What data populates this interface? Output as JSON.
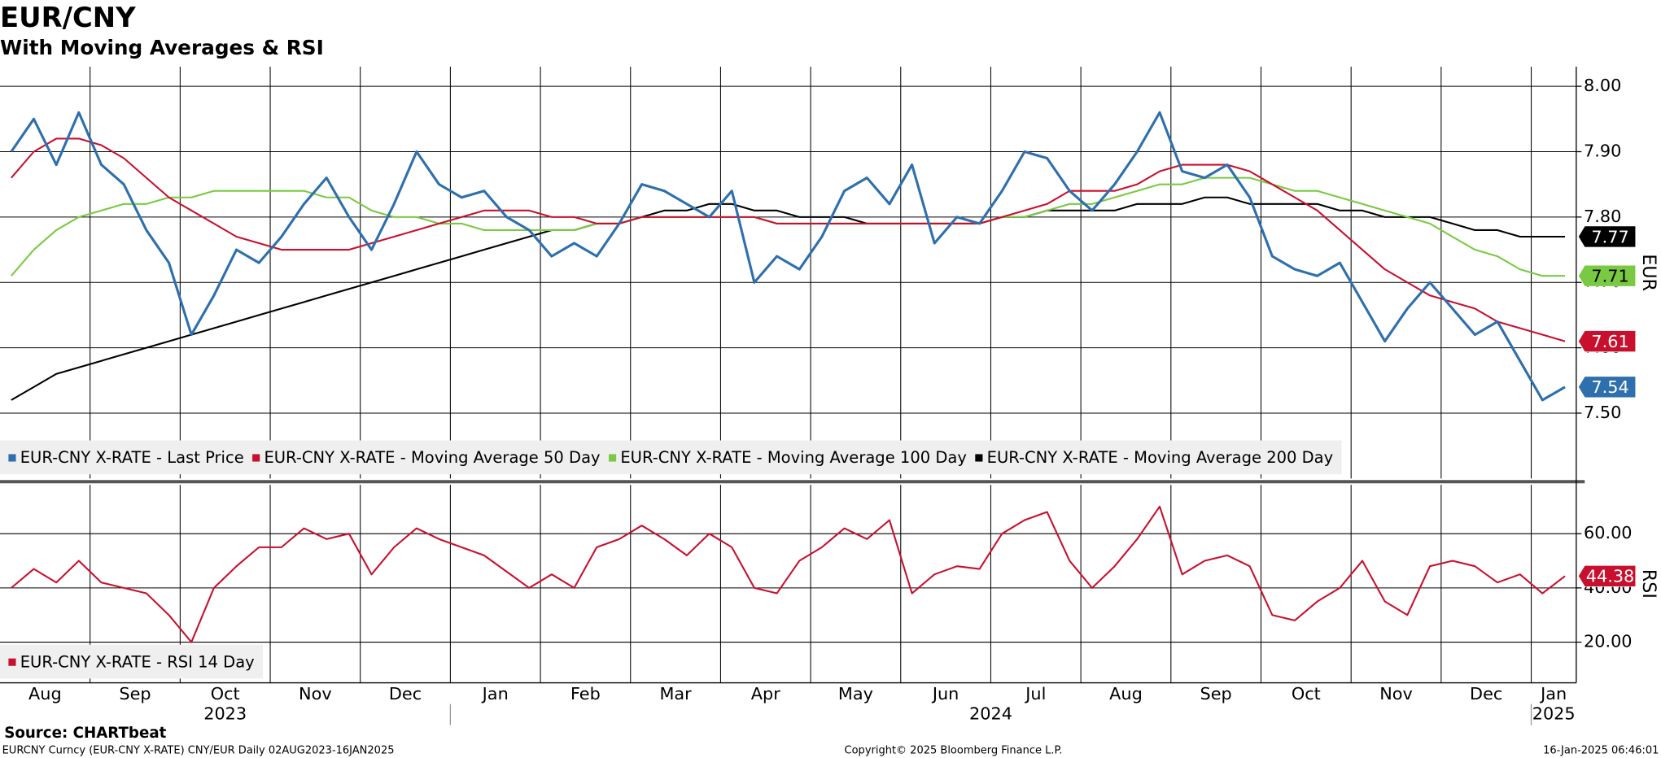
{
  "chart_data": [
    {
      "type": "line",
      "title": "EUR/CNY",
      "subtitle": "With Moving Averages & RSI",
      "axis_label": "EUR",
      "ylim": [
        7.4,
        8.03
      ],
      "yticks": [
        {
          "value": 7.5,
          "label": "7.50"
        },
        {
          "value": 7.6,
          "label": "7.60"
        },
        {
          "value": 7.7,
          "label": "7.70"
        },
        {
          "value": 7.8,
          "label": "7.80"
        },
        {
          "value": 7.9,
          "label": "7.90"
        },
        {
          "value": 8,
          "label": "8.00"
        }
      ],
      "grid": true,
      "legend": "bottom-left",
      "series": [
        {
          "name": "EUR-CNY X-RATE - Last Price",
          "color": "#2e6fad",
          "values": [
            7.9,
            7.95,
            7.88,
            7.96,
            7.88,
            7.85,
            7.78,
            7.73,
            7.62,
            7.68,
            7.75,
            7.73,
            7.77,
            7.82,
            7.86,
            7.8,
            7.75,
            7.82,
            7.9,
            7.85,
            7.83,
            7.84,
            7.8,
            7.78,
            7.74,
            7.76,
            7.74,
            7.79,
            7.85,
            7.84,
            7.82,
            7.8,
            7.84,
            7.7,
            7.74,
            7.72,
            7.77,
            7.84,
            7.86,
            7.82,
            7.88,
            7.76,
            7.8,
            7.79,
            7.84,
            7.9,
            7.89,
            7.84,
            7.81,
            7.85,
            7.9,
            7.96,
            7.87,
            7.86,
            7.88,
            7.83,
            7.74,
            7.72,
            7.71,
            7.73,
            7.67,
            7.61,
            7.66,
            7.7,
            7.66,
            7.62,
            7.64,
            7.58,
            7.52,
            7.54
          ]
        },
        {
          "name": "EUR-CNY X-RATE - Moving Average 50 Day",
          "color": "#c8102e",
          "values": [
            7.86,
            7.9,
            7.92,
            7.92,
            7.91,
            7.89,
            7.86,
            7.83,
            7.81,
            7.79,
            7.77,
            7.76,
            7.75,
            7.75,
            7.75,
            7.75,
            7.76,
            7.77,
            7.78,
            7.79,
            7.8,
            7.81,
            7.81,
            7.81,
            7.8,
            7.8,
            7.79,
            7.79,
            7.8,
            7.8,
            7.8,
            7.8,
            7.8,
            7.8,
            7.79,
            7.79,
            7.79,
            7.79,
            7.79,
            7.79,
            7.79,
            7.79,
            7.79,
            7.79,
            7.8,
            7.81,
            7.82,
            7.84,
            7.84,
            7.84,
            7.85,
            7.87,
            7.88,
            7.88,
            7.88,
            7.87,
            7.85,
            7.83,
            7.81,
            7.78,
            7.75,
            7.72,
            7.7,
            7.68,
            7.67,
            7.66,
            7.64,
            7.63,
            7.62,
            7.61
          ]
        },
        {
          "name": "EUR-CNY X-RATE - Moving Average 100 Day",
          "color": "#7ac943",
          "values": [
            7.71,
            7.75,
            7.78,
            7.8,
            7.81,
            7.82,
            7.82,
            7.83,
            7.83,
            7.84,
            7.84,
            7.84,
            7.84,
            7.84,
            7.83,
            7.83,
            7.81,
            7.8,
            7.8,
            7.79,
            7.79,
            7.78,
            7.78,
            7.78,
            7.78,
            7.78,
            7.79,
            7.79,
            7.8,
            7.8,
            7.8,
            7.8,
            7.8,
            7.8,
            7.79,
            7.79,
            7.79,
            7.79,
            7.79,
            7.79,
            7.79,
            7.79,
            7.79,
            7.79,
            7.8,
            7.8,
            7.81,
            7.82,
            7.82,
            7.83,
            7.84,
            7.85,
            7.85,
            7.86,
            7.86,
            7.86,
            7.85,
            7.84,
            7.84,
            7.83,
            7.82,
            7.81,
            7.8,
            7.79,
            7.77,
            7.75,
            7.74,
            7.72,
            7.71,
            7.71
          ]
        },
        {
          "name": "EUR-CNY X-RATE - Moving Average 200 Day",
          "color": "#000000",
          "values": [
            7.52,
            7.54,
            7.56,
            7.57,
            7.58,
            7.59,
            7.6,
            7.61,
            7.62,
            7.63,
            7.64,
            7.65,
            7.66,
            7.67,
            7.68,
            7.69,
            7.7,
            7.71,
            7.72,
            7.73,
            7.74,
            7.75,
            7.76,
            7.77,
            7.78,
            7.78,
            7.79,
            7.79,
            7.8,
            7.81,
            7.81,
            7.82,
            7.82,
            7.81,
            7.81,
            7.8,
            7.8,
            7.8,
            7.79,
            7.79,
            7.79,
            7.79,
            7.79,
            7.79,
            7.8,
            7.8,
            7.81,
            7.81,
            7.81,
            7.81,
            7.82,
            7.82,
            7.82,
            7.83,
            7.83,
            7.82,
            7.82,
            7.82,
            7.82,
            7.81,
            7.81,
            7.8,
            7.8,
            7.8,
            7.79,
            7.78,
            7.78,
            7.77,
            7.77,
            7.77
          ]
        }
      ]
    },
    {
      "type": "line",
      "axis_label": "RSI",
      "ylim": [
        5,
        78
      ],
      "yticks": [
        {
          "value": 20,
          "label": "20.00"
        },
        {
          "value": 40,
          "label": "40.00"
        },
        {
          "value": 60,
          "label": "60.00"
        }
      ],
      "grid": true,
      "legend": "bottom-left",
      "categories": [
        "Aug",
        null,
        null,
        null,
        "Sep",
        null,
        null,
        null,
        "Oct",
        null,
        null,
        null,
        "Nov",
        null,
        null,
        null,
        "Dec",
        null,
        null,
        null,
        "Jan",
        null,
        null,
        null,
        "Feb",
        null,
        null,
        null,
        "Mar",
        null,
        null,
        null,
        "Apr",
        null,
        null,
        null,
        "May",
        null,
        null,
        null,
        "Jun",
        null,
        null,
        null,
        "Jul",
        null,
        null,
        null,
        "Aug",
        null,
        null,
        null,
        "Sep",
        null,
        null,
        null,
        "Oct",
        null,
        null,
        null,
        "Nov",
        null,
        null,
        null,
        "Dec",
        null,
        null,
        null,
        "Jan",
        null
      ],
      "years": [
        "2023",
        "2024",
        "2025"
      ],
      "series": [
        {
          "name": "EUR-CNY X-RATE - RSI 14 Day",
          "color": "#c8102e",
          "values": [
            40,
            47,
            42,
            50,
            42,
            40,
            38,
            30,
            20,
            40,
            48,
            55,
            55,
            62,
            58,
            60,
            45,
            55,
            62,
            58,
            55,
            52,
            46,
            40,
            45,
            40,
            55,
            58,
            63,
            58,
            52,
            60,
            55,
            40,
            38,
            50,
            55,
            62,
            58,
            65,
            38,
            45,
            48,
            47,
            60,
            65,
            68,
            50,
            40,
            48,
            58,
            70,
            45,
            50,
            52,
            48,
            30,
            28,
            35,
            40,
            50,
            35,
            30,
            48,
            50,
            48,
            42,
            45,
            38,
            44.38
          ]
        }
      ]
    }
  ],
  "footer": {
    "source": "Source: CHARTbeat",
    "ticker": "EURCNY Curncy (EUR-CNY X-RATE) CNY/EUR  Daily 02AUG2023-16JAN2025",
    "copyright": "Copyright© 2025 Bloomberg Finance L.P.",
    "timestamp": "16-Jan-2025 06:46:01"
  }
}
